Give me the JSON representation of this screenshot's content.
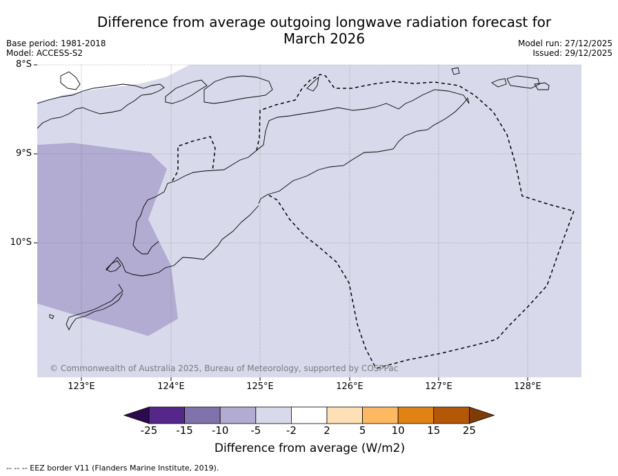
{
  "header": {
    "title_line1": "Difference from average outgoing longwave radiation forecast for",
    "title_line2": "March 2026",
    "base_period": "Base period: 1981-2018",
    "model": "Model: ACCESS-S2",
    "model_run": "Model run: 27/12/2025",
    "issued": "Issued: 29/12/2025"
  },
  "map": {
    "lat_ticks": [
      "8°S",
      "9°S",
      "10°S"
    ],
    "lon_ticks": [
      "123°E",
      "124°E",
      "125°E",
      "126°E",
      "127°E",
      "128°E"
    ],
    "copyright": "© Commonwealth of Australia 2025, Bureau of Meteorology, supported by COSPPac"
  },
  "colorbar": {
    "labels": [
      "-25",
      "-15",
      "-10",
      "-5",
      "-2",
      "2",
      "5",
      "10",
      "15",
      "25"
    ],
    "colors": [
      "#2d0a4e",
      "#542788",
      "#8073ac",
      "#b2abd2",
      "#d8daeb",
      "#ffffff",
      "#fee0b6",
      "#fdb863",
      "#e08214",
      "#b35806",
      "#7f3b08"
    ],
    "title": "Difference from average (W/m2)"
  },
  "footer": {
    "eez_note": "-- -- -- EEZ border V11 (Flanders Marine Institute, 2019)."
  }
}
